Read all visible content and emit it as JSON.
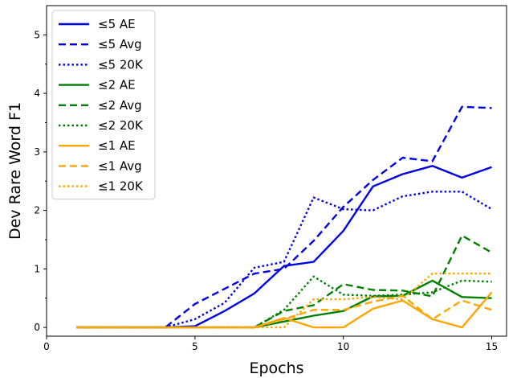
{
  "chart_data": {
    "type": "line",
    "title": "",
    "xlabel": "Epochs",
    "ylabel": "Dev Rare Word F1",
    "xlim": [
      0,
      15.5
    ],
    "ylim": [
      -0.15,
      5.5
    ],
    "xticks": [
      0,
      5,
      10,
      15
    ],
    "xtick_labels": [
      "0",
      "5",
      "10",
      "15"
    ],
    "yticks": [
      0,
      1,
      2,
      3,
      4,
      5
    ],
    "ytick_labels": [
      "0",
      "1",
      "2",
      "3",
      "4",
      "5"
    ],
    "grid": false,
    "legend_position": "top-left",
    "x": [
      1,
      2,
      3,
      4,
      5,
      6,
      7,
      8,
      9,
      10,
      11,
      12,
      13,
      14,
      15
    ],
    "series": [
      {
        "name": "≤5 AE",
        "color": "#0000e6",
        "style": "solid",
        "values": [
          0,
          0,
          0,
          0,
          0.02,
          0.28,
          0.58,
          1.05,
          1.12,
          1.65,
          2.41,
          2.62,
          2.76,
          2.56,
          2.74
        ]
      },
      {
        "name": "≤5 Avg",
        "color": "#0000e6",
        "style": "dashed",
        "values": [
          0,
          0,
          0,
          0,
          0.4,
          0.66,
          0.92,
          1.0,
          1.48,
          2.06,
          2.52,
          2.9,
          2.84,
          3.77,
          3.75
        ]
      },
      {
        "name": "≤5 20K",
        "color": "#0000e6",
        "style": "dotted",
        "values": [
          0,
          0,
          0,
          0,
          0.14,
          0.42,
          1.02,
          1.12,
          2.22,
          2.02,
          2.0,
          2.24,
          2.32,
          2.32,
          2.02
        ]
      },
      {
        "name": "≤2 AE",
        "color": "#008000",
        "style": "solid",
        "values": [
          0,
          0,
          0,
          0,
          0,
          0,
          0,
          0.1,
          0.2,
          0.28,
          0.53,
          0.54,
          0.8,
          0.52,
          0.5
        ]
      },
      {
        "name": "≤2 Avg",
        "color": "#008000",
        "style": "dashed",
        "values": [
          0,
          0,
          0,
          0,
          0,
          0,
          0,
          0.28,
          0.38,
          0.74,
          0.64,
          0.63,
          0.53,
          1.57,
          1.28
        ]
      },
      {
        "name": "≤2 20K",
        "color": "#008000",
        "style": "dotted",
        "values": [
          0,
          0,
          0,
          0,
          0,
          0,
          0,
          0.3,
          0.87,
          0.56,
          0.54,
          0.56,
          0.6,
          0.8,
          0.78
        ]
      },
      {
        "name": "≤1 AE",
        "color": "#ffa500",
        "style": "solid",
        "values": [
          0,
          0,
          0,
          0,
          0,
          0,
          0,
          0.16,
          0,
          0,
          0.32,
          0.46,
          0.14,
          0,
          0.6
        ]
      },
      {
        "name": "≤1 Avg",
        "color": "#ffa500",
        "style": "dashed",
        "values": [
          0,
          0,
          0,
          0,
          0,
          0,
          0,
          0.14,
          0.3,
          0.3,
          0.44,
          0.54,
          0.14,
          0.46,
          0.3
        ]
      },
      {
        "name": "≤1 20K",
        "color": "#ffa500",
        "style": "dotted",
        "values": [
          0,
          0,
          0,
          0,
          0,
          0,
          0,
          0,
          0.48,
          0.48,
          0.52,
          0.48,
          0.92,
          0.92,
          0.92
        ]
      }
    ]
  }
}
